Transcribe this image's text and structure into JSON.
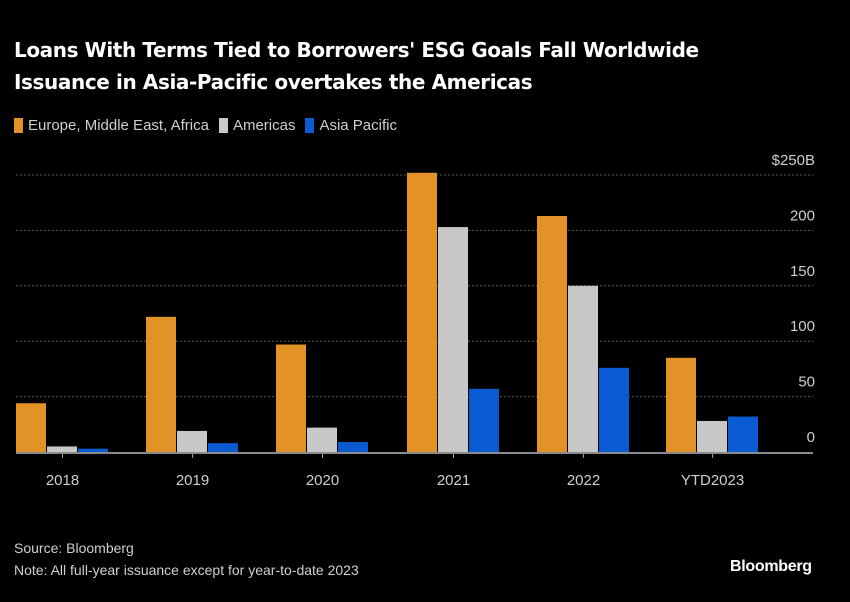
{
  "chart_data": {
    "type": "bar",
    "title": "Loans With Terms Tied to Borrowers' ESG Goals Fall Worldwide",
    "subtitle": "Issuance in Asia-Pacific overtakes the Americas",
    "xlabel": "",
    "ylabel": "",
    "categories": [
      "2018",
      "2019",
      "2020",
      "2021",
      "2022",
      "YTD2023"
    ],
    "series": [
      {
        "name": "Europe, Middle East, Africa",
        "color": "#e39227",
        "values": [
          44,
          122,
          97,
          252,
          213,
          85
        ]
      },
      {
        "name": "Americas",
        "color": "#c8c8c8",
        "values": [
          5,
          19,
          22,
          203,
          150,
          28
        ]
      },
      {
        "name": "Asia Pacific",
        "color": "#0a5ad1",
        "values": [
          3,
          8,
          9,
          57,
          76,
          32
        ]
      }
    ],
    "ylim": [
      0,
      250
    ],
    "yticks": [
      0,
      50,
      100,
      150,
      200,
      250
    ],
    "ytick_labels": [
      "0",
      "50",
      "100",
      "150",
      "200",
      "$250B"
    ],
    "grid": true,
    "legend_position": "top-left",
    "y_axis_side": "right"
  },
  "footer": {
    "source": "Source: Bloomberg",
    "note": "Note: All full-year issuance except for year-to-date 2023",
    "brand": "Bloomberg"
  }
}
